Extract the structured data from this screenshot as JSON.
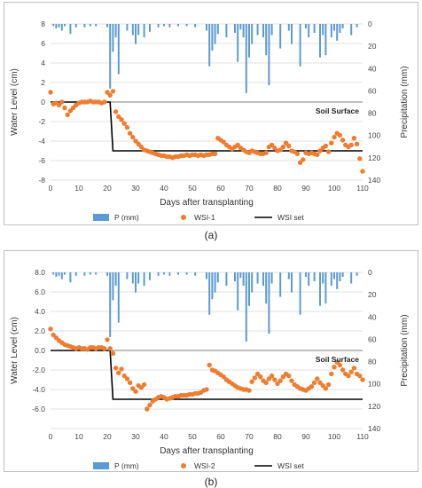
{
  "chart_data": [
    {
      "type": "line",
      "caption": "(a)",
      "xlabel": "Days after transplanting",
      "ylabel": "Water Level (cm)",
      "y2label": "Precipitation (mm)",
      "xlim": [
        0,
        110
      ],
      "ylim": [
        -8,
        8
      ],
      "y2lim": [
        0,
        140
      ],
      "y2_inverted": true,
      "xticks": [
        0,
        10,
        20,
        30,
        40,
        50,
        60,
        70,
        80,
        90,
        100,
        110
      ],
      "yticks": [
        -8,
        -6,
        -4,
        -2,
        0,
        2,
        4,
        6,
        8
      ],
      "ytick_labels": [
        "-8",
        "-6",
        "-4",
        "-2",
        "0",
        "2",
        "4",
        "6",
        "8"
      ],
      "y2ticks": [
        0,
        20,
        40,
        60,
        80,
        100,
        120,
        140
      ],
      "grid": true,
      "legend_position": "bottom",
      "annotation": "Soil Surface",
      "colors": {
        "precip": "#5b9bd5",
        "wsi": "#ed7d31",
        "set": "#000000",
        "grid": "#d9d9d9",
        "surface": "#7f7f7f"
      },
      "series": [
        {
          "name": "P (mm)",
          "kind": "bar",
          "axis": "y2",
          "x": [
            1,
            2,
            3,
            4,
            5,
            7,
            9,
            12,
            14,
            16,
            20,
            21,
            22,
            23,
            24,
            27,
            29,
            30,
            31,
            33,
            35,
            38,
            40,
            42,
            45,
            48,
            51,
            55,
            56,
            57,
            58,
            59,
            62,
            65,
            66,
            67,
            68,
            69,
            70,
            71,
            73,
            75,
            76,
            77,
            78,
            81,
            84,
            85,
            88,
            90,
            91,
            93,
            95,
            96,
            97,
            99,
            100,
            101,
            102,
            103,
            106,
            108
          ],
          "y": [
            2,
            4,
            3,
            6,
            2,
            9,
            3,
            3,
            2,
            2,
            3,
            58,
            25,
            12,
            45,
            6,
            10,
            18,
            10,
            12,
            7,
            3,
            2,
            3,
            2,
            2,
            3,
            6,
            38,
            24,
            18,
            9,
            12,
            8,
            34,
            5,
            12,
            62,
            30,
            18,
            10,
            12,
            28,
            55,
            10,
            22,
            6,
            18,
            38,
            4,
            12,
            8,
            30,
            10,
            28,
            12,
            6,
            15,
            8,
            4,
            10,
            3
          ]
        },
        {
          "name": "WSI-1",
          "kind": "scatter",
          "axis": "y",
          "x": [
            0,
            1,
            2,
            3,
            4,
            5,
            6,
            7,
            8,
            9,
            10,
            11,
            12,
            13,
            14,
            15,
            16,
            17,
            18,
            19,
            20,
            21,
            22,
            23,
            24,
            25,
            26,
            27,
            28,
            29,
            30,
            31,
            32,
            33,
            34,
            35,
            36,
            37,
            38,
            39,
            40,
            41,
            42,
            43,
            44,
            45,
            46,
            47,
            48,
            49,
            50,
            51,
            52,
            53,
            54,
            55,
            56,
            57,
            58,
            59,
            60,
            61,
            62,
            63,
            64,
            65,
            66,
            67,
            68,
            69,
            70,
            71,
            72,
            73,
            74,
            75,
            76,
            77,
            78,
            79,
            80,
            81,
            82,
            83,
            84,
            85,
            86,
            87,
            88,
            89,
            90,
            91,
            92,
            93,
            94,
            95,
            96,
            97,
            98,
            99,
            100,
            101,
            102,
            103,
            104,
            105,
            106,
            107,
            108,
            109,
            110
          ],
          "y": [
            1.0,
            -0.2,
            -0.1,
            -0.3,
            0.0,
            -0.6,
            -1.3,
            -0.9,
            -0.6,
            -0.3,
            -0.1,
            0.0,
            0.0,
            0.0,
            0.1,
            0.0,
            0.0,
            0.0,
            -0.1,
            0.0,
            1.0,
            0.7,
            1.1,
            -1.0,
            -1.5,
            -1.8,
            -2.2,
            -2.6,
            -3.2,
            -3.6,
            -4.0,
            -4.3,
            -4.6,
            -4.9,
            -5.0,
            -5.1,
            -5.2,
            -5.3,
            -5.4,
            -5.5,
            -5.5,
            -5.6,
            -5.6,
            -5.7,
            -5.6,
            -5.6,
            -5.5,
            -5.5,
            -5.4,
            -5.5,
            -5.4,
            -5.4,
            -5.5,
            -5.4,
            -5.5,
            -5.4,
            -5.4,
            -5.3,
            -5.3,
            -3.7,
            -3.9,
            -4.1,
            -4.4,
            -4.6,
            -4.8,
            -4.6,
            -4.4,
            -4.7,
            -4.9,
            -5.1,
            -5.2,
            -5.0,
            -5.1,
            -5.2,
            -5.3,
            -5.3,
            -5.2,
            -4.6,
            -4.4,
            -4.7,
            -5.0,
            -4.9,
            -4.6,
            -4.2,
            -4.5,
            -5.0,
            -5.1,
            -5.3,
            -6.2,
            -5.9,
            -5.2,
            -5.3,
            -5.2,
            -5.3,
            -5.4,
            -5.0,
            -4.7,
            -4.5,
            -5.1,
            -4.2,
            -3.6,
            -3.2,
            -3.4,
            -3.9,
            -4.4,
            -4.6,
            -4.4,
            -3.7,
            -4.3,
            -5.8,
            -7.1
          ]
        },
        {
          "name": "WSI set",
          "kind": "line",
          "axis": "y",
          "x": [
            0,
            21,
            22,
            110
          ],
          "y": [
            0,
            0,
            -5,
            -5
          ]
        }
      ]
    },
    {
      "type": "line",
      "caption": "(b)",
      "xlabel": "Days after transplanting",
      "ylabel": "Water Level (cm)",
      "y2label": "Precipitation (mm)",
      "xlim": [
        0,
        110
      ],
      "ylim": [
        -8,
        8
      ],
      "y2lim": [
        0,
        140
      ],
      "y2_inverted": true,
      "xticks": [
        0,
        10,
        20,
        30,
        40,
        50,
        60,
        70,
        80,
        90,
        100,
        110
      ],
      "yticks": [
        -8,
        -6,
        -4,
        -2,
        0,
        2,
        4,
        6,
        8
      ],
      "ytick_labels": [
        "",
        "-6.0",
        "-4.0",
        "-2.0",
        "0.0",
        "2.0",
        "4.0",
        "6.0",
        "8.0"
      ],
      "y2ticks": [
        0,
        20,
        40,
        60,
        80,
        100,
        120,
        140
      ],
      "grid": true,
      "legend_position": "bottom",
      "annotation": "Soil Surface",
      "colors": {
        "precip": "#5b9bd5",
        "wsi": "#ed7d31",
        "set": "#000000",
        "grid": "#d9d9d9",
        "surface": "#7f7f7f"
      },
      "series": [
        {
          "name": "P (mm)",
          "kind": "bar",
          "axis": "y2",
          "x": [
            1,
            2,
            3,
            4,
            5,
            7,
            9,
            12,
            14,
            16,
            20,
            21,
            22,
            23,
            24,
            27,
            29,
            30,
            31,
            33,
            35,
            38,
            40,
            42,
            45,
            48,
            51,
            55,
            56,
            57,
            58,
            59,
            62,
            65,
            66,
            67,
            68,
            69,
            70,
            71,
            73,
            75,
            76,
            77,
            78,
            81,
            84,
            85,
            88,
            90,
            91,
            93,
            95,
            96,
            97,
            99,
            100,
            101,
            102,
            103,
            106,
            108
          ],
          "y": [
            2,
            4,
            3,
            6,
            2,
            9,
            3,
            3,
            2,
            2,
            3,
            58,
            25,
            12,
            45,
            6,
            10,
            18,
            10,
            12,
            7,
            3,
            2,
            3,
            2,
            2,
            3,
            6,
            38,
            24,
            18,
            9,
            12,
            8,
            34,
            5,
            12,
            62,
            30,
            18,
            10,
            12,
            28,
            55,
            10,
            22,
            6,
            18,
            38,
            4,
            12,
            8,
            30,
            10,
            28,
            12,
            6,
            15,
            8,
            4,
            10,
            3
          ]
        },
        {
          "name": "WSI-2",
          "kind": "scatter",
          "axis": "y",
          "x": [
            0,
            1,
            2,
            3,
            4,
            5,
            6,
            7,
            8,
            9,
            10,
            11,
            12,
            13,
            14,
            15,
            16,
            17,
            18,
            19,
            20,
            21,
            22,
            23,
            24,
            25,
            26,
            27,
            28,
            29,
            30,
            31,
            32,
            33,
            34,
            35,
            36,
            37,
            38,
            39,
            40,
            41,
            42,
            43,
            44,
            45,
            46,
            47,
            48,
            49,
            50,
            51,
            52,
            53,
            54,
            55,
            56,
            57,
            58,
            59,
            60,
            61,
            62,
            63,
            64,
            65,
            66,
            67,
            68,
            69,
            70,
            71,
            72,
            73,
            74,
            75,
            76,
            77,
            78,
            79,
            80,
            81,
            82,
            83,
            84,
            85,
            86,
            87,
            88,
            89,
            90,
            91,
            92,
            93,
            94,
            95,
            96,
            97,
            98,
            99,
            100,
            101,
            102,
            103,
            104,
            105,
            106,
            107,
            108,
            109,
            110
          ],
          "y": [
            2.2,
            1.6,
            1.3,
            1.0,
            0.8,
            0.6,
            0.5,
            0.4,
            0.3,
            0.2,
            0.3,
            0.2,
            0.2,
            0.1,
            0.3,
            0.3,
            0.2,
            0.3,
            0.3,
            0.2,
            1.1,
            0.2,
            -0.3,
            -1.8,
            -2.3,
            -1.9,
            -2.6,
            -2.9,
            -3.3,
            -3.9,
            -4.2,
            -3.6,
            -3.8,
            -3.5,
            -6.0,
            -5.6,
            -5.2,
            -5.0,
            -4.8,
            -4.7,
            -4.8,
            -5.0,
            -4.9,
            -4.8,
            -4.7,
            -4.7,
            -4.6,
            -4.6,
            -4.6,
            -4.5,
            -4.5,
            -4.4,
            -4.4,
            -4.3,
            -4.1,
            -4.0,
            -1.5,
            -2.0,
            -2.1,
            -2.3,
            -2.5,
            -2.7,
            -3.0,
            -3.2,
            -3.4,
            -3.6,
            -3.8,
            -3.9,
            -4.0,
            -4.0,
            -4.1,
            -3.2,
            -2.8,
            -2.4,
            -2.7,
            -3.1,
            -3.3,
            -2.9,
            -2.6,
            -3.0,
            -3.4,
            -3.1,
            -2.7,
            -2.4,
            -2.6,
            -3.1,
            -3.5,
            -3.7,
            -3.9,
            -4.0,
            -4.1,
            -3.9,
            -3.7,
            -3.3,
            -2.9,
            -3.3,
            -3.6,
            -3.9,
            -3.5,
            -2.4,
            -1.7,
            -1.2,
            -1.5,
            -2.0,
            -2.4,
            -2.6,
            -2.2,
            -1.8,
            -2.4,
            -2.6,
            -3.0
          ]
        },
        {
          "name": "WSI set",
          "kind": "line",
          "axis": "y",
          "x": [
            0,
            21,
            22,
            110
          ],
          "y": [
            0,
            0,
            -5,
            -5
          ]
        }
      ]
    }
  ]
}
